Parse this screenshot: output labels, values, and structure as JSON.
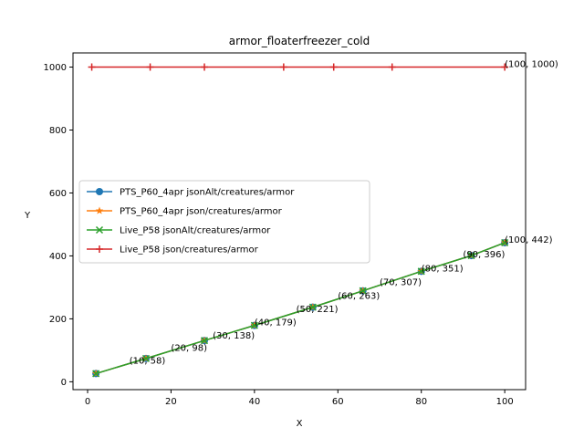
{
  "chart_data": {
    "type": "line",
    "title": "armor_floaterfreezer_cold",
    "xlabel": "X",
    "ylabel": "Y",
    "xlim": [
      -3.5,
      105
    ],
    "ylim": [
      -25,
      1045
    ],
    "xticks": [
      0,
      20,
      40,
      60,
      80,
      100
    ],
    "yticks": [
      0,
      200,
      400,
      600,
      800,
      1000
    ],
    "legend_position": "center-left",
    "series": [
      {
        "name": "PTS_P60_4apr jsonAlt/creatures/armor",
        "color": "#1f77b4",
        "marker": "circle",
        "x": [
          2,
          14,
          28,
          40,
          54,
          66,
          80,
          92,
          100
        ],
        "y": [
          26,
          74,
          131,
          179,
          237,
          289,
          351,
          401,
          442
        ]
      },
      {
        "name": "PTS_P60_4apr json/creatures/armor",
        "color": "#ff7f0e",
        "marker": "star",
        "x": [
          2,
          14,
          28,
          40,
          54,
          66,
          80,
          92,
          100
        ],
        "y": [
          26,
          74,
          131,
          179,
          237,
          289,
          351,
          401,
          442
        ]
      },
      {
        "name": "Live_P58 jsonAlt/creatures/armor",
        "color": "#2ca02c",
        "marker": "x",
        "x": [
          2,
          14,
          28,
          40,
          54,
          66,
          80,
          92,
          100
        ],
        "y": [
          26,
          74,
          131,
          179,
          237,
          289,
          351,
          401,
          442
        ]
      },
      {
        "name": "Live_P58 json/creatures/armor",
        "color": "#d62728",
        "marker": "plus",
        "x": [
          1,
          15,
          28,
          47,
          59,
          73,
          100
        ],
        "y": [
          1000,
          1000,
          1000,
          1000,
          1000,
          1000,
          1000
        ]
      }
    ],
    "annotations": [
      {
        "text": "(10, 58)",
        "x": 10,
        "y": 58
      },
      {
        "text": "(20, 98)",
        "x": 20,
        "y": 98
      },
      {
        "text": "(30, 138)",
        "x": 30,
        "y": 138
      },
      {
        "text": "(40, 179)",
        "x": 40,
        "y": 179
      },
      {
        "text": "(50, 221)",
        "x": 50,
        "y": 221
      },
      {
        "text": "(60, 263)",
        "x": 60,
        "y": 263
      },
      {
        "text": "(70, 307)",
        "x": 70,
        "y": 307
      },
      {
        "text": "(80, 351)",
        "x": 80,
        "y": 351
      },
      {
        "text": "(90, 396)",
        "x": 90,
        "y": 396
      },
      {
        "text": "(100, 442)",
        "x": 100,
        "y": 442
      },
      {
        "text": "(100, 1000)",
        "x": 100,
        "y": 1000
      }
    ]
  }
}
